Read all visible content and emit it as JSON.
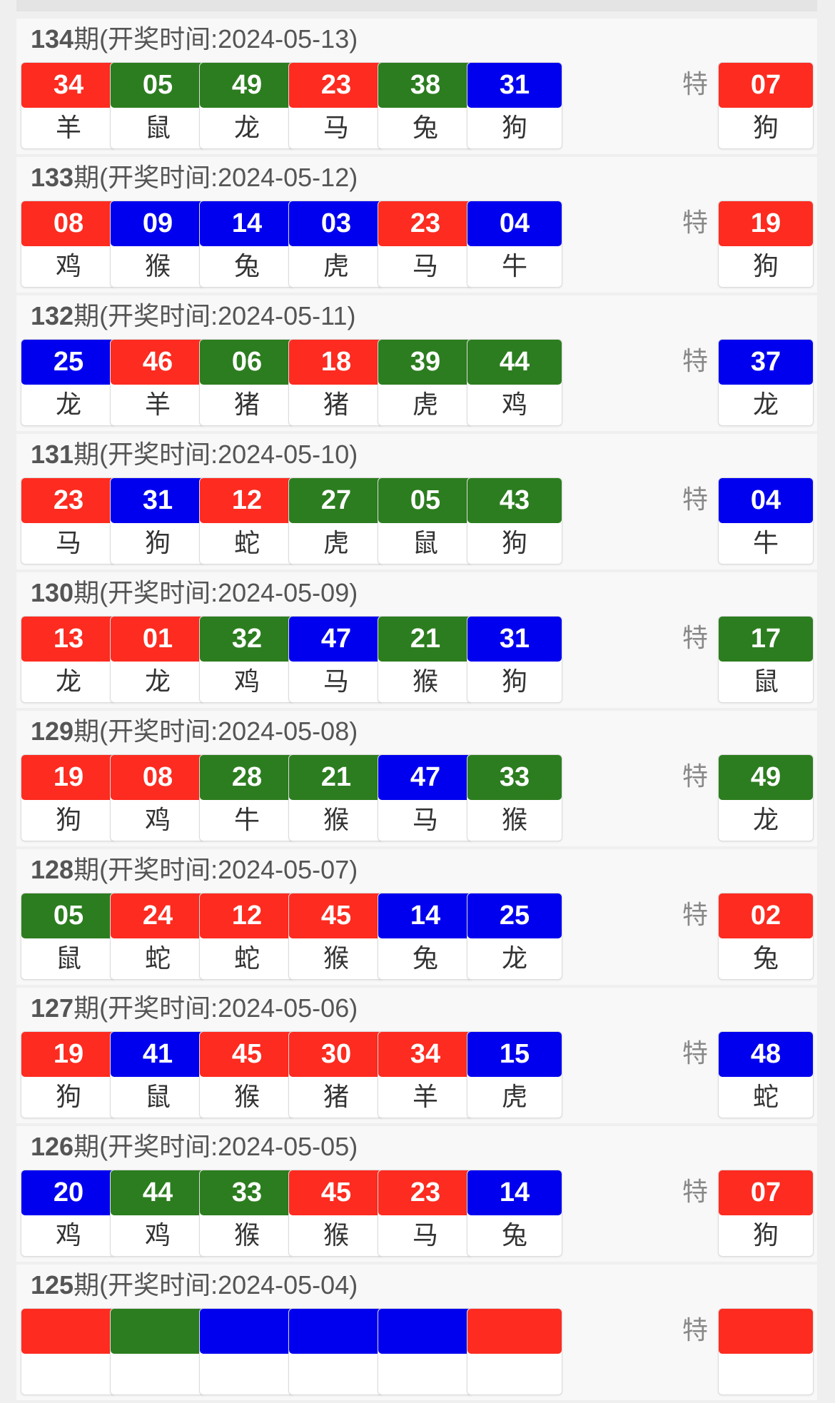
{
  "colors": {
    "red": "#fd2b20",
    "green": "#2c7d1f",
    "blue": "#0000ef"
  },
  "special_label": "特",
  "draws": [
    {
      "period": "134",
      "suffix": "期(开奖时间:2024-05-13)",
      "balls": [
        [
          "34",
          "羊",
          "red"
        ],
        [
          "05",
          "鼠",
          "green"
        ],
        [
          "49",
          "龙",
          "green"
        ],
        [
          "23",
          "马",
          "red"
        ],
        [
          "38",
          "兔",
          "green"
        ],
        [
          "31",
          "狗",
          "blue"
        ]
      ],
      "special": [
        "07",
        "狗",
        "red"
      ]
    },
    {
      "period": "133",
      "suffix": "期(开奖时间:2024-05-12)",
      "balls": [
        [
          "08",
          "鸡",
          "red"
        ],
        [
          "09",
          "猴",
          "blue"
        ],
        [
          "14",
          "兔",
          "blue"
        ],
        [
          "03",
          "虎",
          "blue"
        ],
        [
          "23",
          "马",
          "red"
        ],
        [
          "04",
          "牛",
          "blue"
        ]
      ],
      "special": [
        "19",
        "狗",
        "red"
      ]
    },
    {
      "period": "132",
      "suffix": "期(开奖时间:2024-05-11)",
      "balls": [
        [
          "25",
          "龙",
          "blue"
        ],
        [
          "46",
          "羊",
          "red"
        ],
        [
          "06",
          "猪",
          "green"
        ],
        [
          "18",
          "猪",
          "red"
        ],
        [
          "39",
          "虎",
          "green"
        ],
        [
          "44",
          "鸡",
          "green"
        ]
      ],
      "special": [
        "37",
        "龙",
        "blue"
      ]
    },
    {
      "period": "131",
      "suffix": "期(开奖时间:2024-05-10)",
      "balls": [
        [
          "23",
          "马",
          "red"
        ],
        [
          "31",
          "狗",
          "blue"
        ],
        [
          "12",
          "蛇",
          "red"
        ],
        [
          "27",
          "虎",
          "green"
        ],
        [
          "05",
          "鼠",
          "green"
        ],
        [
          "43",
          "狗",
          "green"
        ]
      ],
      "special": [
        "04",
        "牛",
        "blue"
      ]
    },
    {
      "period": "130",
      "suffix": "期(开奖时间:2024-05-09)",
      "balls": [
        [
          "13",
          "龙",
          "red"
        ],
        [
          "01",
          "龙",
          "red"
        ],
        [
          "32",
          "鸡",
          "green"
        ],
        [
          "47",
          "马",
          "blue"
        ],
        [
          "21",
          "猴",
          "green"
        ],
        [
          "31",
          "狗",
          "blue"
        ]
      ],
      "special": [
        "17",
        "鼠",
        "green"
      ]
    },
    {
      "period": "129",
      "suffix": "期(开奖时间:2024-05-08)",
      "balls": [
        [
          "19",
          "狗",
          "red"
        ],
        [
          "08",
          "鸡",
          "red"
        ],
        [
          "28",
          "牛",
          "green"
        ],
        [
          "21",
          "猴",
          "green"
        ],
        [
          "47",
          "马",
          "blue"
        ],
        [
          "33",
          "猴",
          "green"
        ]
      ],
      "special": [
        "49",
        "龙",
        "green"
      ]
    },
    {
      "period": "128",
      "suffix": "期(开奖时间:2024-05-07)",
      "balls": [
        [
          "05",
          "鼠",
          "green"
        ],
        [
          "24",
          "蛇",
          "red"
        ],
        [
          "12",
          "蛇",
          "red"
        ],
        [
          "45",
          "猴",
          "red"
        ],
        [
          "14",
          "兔",
          "blue"
        ],
        [
          "25",
          "龙",
          "blue"
        ]
      ],
      "special": [
        "02",
        "兔",
        "red"
      ]
    },
    {
      "period": "127",
      "suffix": "期(开奖时间:2024-05-06)",
      "balls": [
        [
          "19",
          "狗",
          "red"
        ],
        [
          "41",
          "鼠",
          "blue"
        ],
        [
          "45",
          "猴",
          "red"
        ],
        [
          "30",
          "猪",
          "red"
        ],
        [
          "34",
          "羊",
          "red"
        ],
        [
          "15",
          "虎",
          "blue"
        ]
      ],
      "special": [
        "48",
        "蛇",
        "blue"
      ]
    },
    {
      "period": "126",
      "suffix": "期(开奖时间:2024-05-05)",
      "balls": [
        [
          "20",
          "鸡",
          "blue"
        ],
        [
          "44",
          "鸡",
          "green"
        ],
        [
          "33",
          "猴",
          "green"
        ],
        [
          "45",
          "猴",
          "red"
        ],
        [
          "23",
          "马",
          "red"
        ],
        [
          "14",
          "兔",
          "blue"
        ]
      ],
      "special": [
        "07",
        "狗",
        "red"
      ]
    },
    {
      "period": "125",
      "suffix": "期(开奖时间:2024-05-04)",
      "balls": [
        [
          "",
          "",
          "red"
        ],
        [
          "",
          "",
          "green"
        ],
        [
          "",
          "",
          "blue"
        ],
        [
          "",
          "",
          "blue"
        ],
        [
          "",
          "",
          "blue"
        ],
        [
          "",
          "",
          "red"
        ]
      ],
      "special": [
        "",
        "",
        "red"
      ]
    }
  ]
}
